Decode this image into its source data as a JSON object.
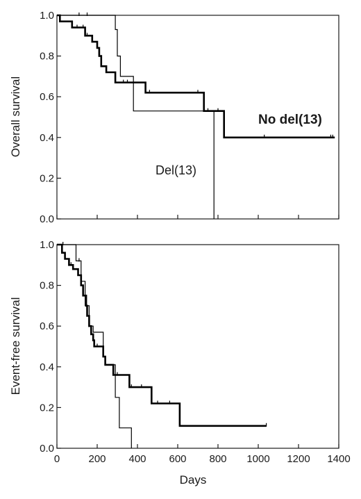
{
  "chart_data": [
    {
      "type": "line",
      "subtype": "kaplan-meier step",
      "ylabel": "Overall survival",
      "xlim": [
        0,
        1400
      ],
      "ylim": [
        0,
        1.0
      ],
      "x_ticks": [
        0,
        200,
        400,
        600,
        800,
        1000,
        1200,
        1400
      ],
      "x_tick_labels_shown": false,
      "y_ticks": [
        "0.0",
        "0.2",
        "0.4",
        "0.6",
        "0.8",
        "1.0"
      ],
      "grid": false,
      "annotations": [
        {
          "text": "No del(13)",
          "weight": "bold"
        },
        {
          "text": "Del(13)",
          "weight": "normal"
        }
      ],
      "series": [
        {
          "label_ref": "No del(13)",
          "line_weight": "thick",
          "color": "#000000",
          "steps": [
            [
              0,
              1.0
            ],
            [
              15,
              0.97
            ],
            [
              75,
              0.94
            ],
            [
              140,
              0.9
            ],
            [
              175,
              0.87
            ],
            [
              200,
              0.84
            ],
            [
              210,
              0.8
            ],
            [
              220,
              0.75
            ],
            [
              245,
              0.72
            ],
            [
              290,
              0.67
            ],
            [
              440,
              0.62
            ],
            [
              730,
              0.53
            ],
            [
              830,
              0.4
            ],
            [
              1380,
              0.4
            ]
          ],
          "censor_x": [
            100,
            130,
            150,
            330,
            350,
            460,
            700,
            750,
            800,
            1030,
            1360,
            1370
          ]
        },
        {
          "label_ref": "Del(13)",
          "line_weight": "thin",
          "color": "#000000",
          "steps": [
            [
              0,
              1.0
            ],
            [
              290,
              0.93
            ],
            [
              300,
              0.8
            ],
            [
              315,
              0.7
            ],
            [
              380,
              0.53
            ],
            [
              780,
              0.0
            ]
          ],
          "censor_x": [
            110,
            150
          ]
        }
      ]
    },
    {
      "type": "line",
      "subtype": "kaplan-meier step",
      "xlabel": "Days",
      "ylabel": "Event-free survival",
      "xlim": [
        0,
        1400
      ],
      "ylim": [
        0,
        1.0
      ],
      "x_ticks": [
        "0",
        "200",
        "400",
        "600",
        "800",
        "1000",
        "1200",
        "1400"
      ],
      "y_ticks": [
        "0.0",
        "0.2",
        "0.4",
        "0.6",
        "0.8",
        "1.0"
      ],
      "grid": false,
      "series": [
        {
          "label_ref": "No del(13)",
          "line_weight": "thick",
          "color": "#000000",
          "steps": [
            [
              0,
              1.0
            ],
            [
              25,
              0.96
            ],
            [
              40,
              0.93
            ],
            [
              60,
              0.9
            ],
            [
              80,
              0.88
            ],
            [
              105,
              0.85
            ],
            [
              120,
              0.8
            ],
            [
              130,
              0.75
            ],
            [
              145,
              0.7
            ],
            [
              150,
              0.65
            ],
            [
              160,
              0.6
            ],
            [
              170,
              0.56
            ],
            [
              180,
              0.53
            ],
            [
              185,
              0.5
            ],
            [
              230,
              0.45
            ],
            [
              240,
              0.41
            ],
            [
              280,
              0.36
            ],
            [
              360,
              0.3
            ],
            [
              470,
              0.22
            ],
            [
              610,
              0.11
            ],
            [
              1040,
              0.11
            ]
          ],
          "censor_x": [
            70,
            200,
            300,
            370,
            420,
            500,
            560,
            1040
          ]
        },
        {
          "label_ref": "Del(13)",
          "line_weight": "thin",
          "color": "#000000",
          "steps": [
            [
              0,
              1.0
            ],
            [
              95,
              0.92
            ],
            [
              120,
              0.82
            ],
            [
              140,
              0.7
            ],
            [
              160,
              0.6
            ],
            [
              180,
              0.57
            ],
            [
              230,
              0.45
            ],
            [
              240,
              0.41
            ],
            [
              290,
              0.25
            ],
            [
              310,
              0.1
            ],
            [
              370,
              0.0
            ]
          ],
          "censor_x": [
            30,
            110
          ]
        }
      ]
    }
  ]
}
